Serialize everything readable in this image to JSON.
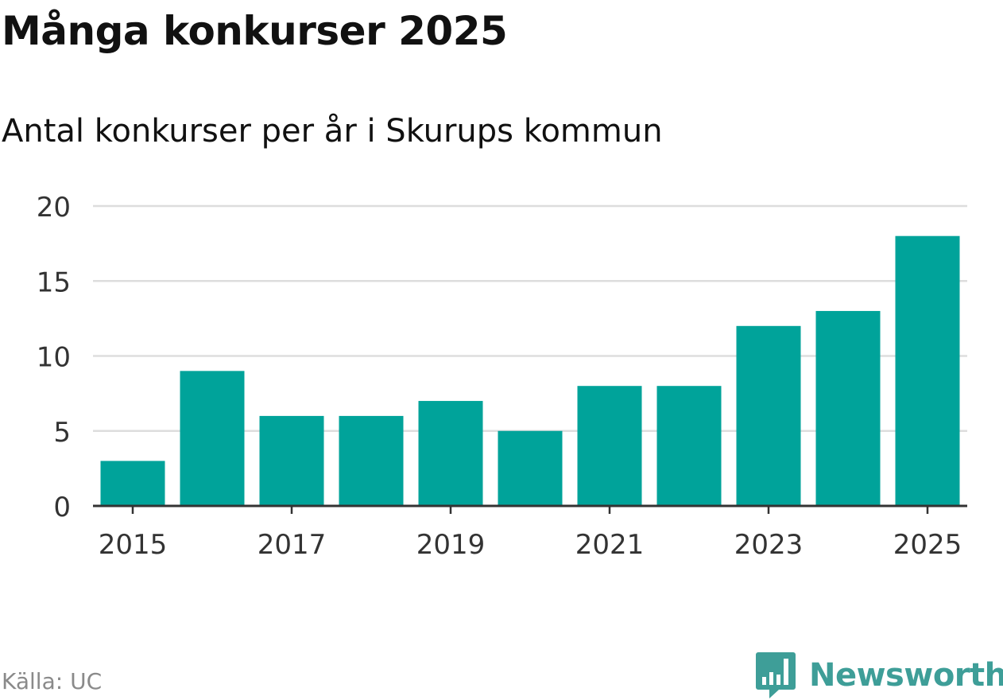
{
  "header": {
    "title": "Många konkurser 2025",
    "subtitle": "Antal konkurser per år i Skurups kommun"
  },
  "footer": {
    "source": "Källa: UC",
    "brand": "Newsworthy",
    "brand_icon": "newsworthy-logo-icon"
  },
  "colors": {
    "bar": "#00a39a",
    "grid": "#dddddd",
    "axis": "#333333",
    "brand": "#3e9e98"
  },
  "chart_data": {
    "type": "bar",
    "title": "Många konkurser 2025",
    "subtitle": "Antal konkurser per år i Skurups kommun",
    "categories": [
      "2015",
      "2016",
      "2017",
      "2018",
      "2019",
      "2020",
      "2021",
      "2022",
      "2023",
      "2024",
      "2025"
    ],
    "values": [
      3,
      9,
      6,
      6,
      7,
      5,
      8,
      8,
      12,
      13,
      18
    ],
    "x_tick_labels": [
      "2015",
      "2017",
      "2019",
      "2021",
      "2023",
      "2025"
    ],
    "y_ticks": [
      0,
      5,
      10,
      15,
      20
    ],
    "ylim": [
      0,
      20
    ],
    "xlabel": "",
    "ylabel": "",
    "grid": true
  }
}
